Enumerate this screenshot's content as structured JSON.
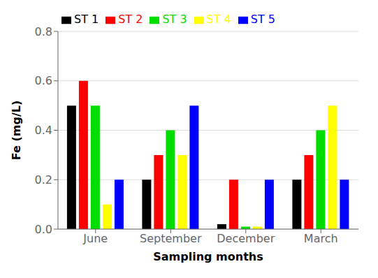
{
  "chart_data": {
    "type": "bar",
    "xlabel": "Sampling months",
    "ylabel": "Fe (mg/L)",
    "categories": [
      "June",
      "September",
      "December",
      "March"
    ],
    "series": [
      {
        "name": "ST 1",
        "color": "#000000",
        "values": [
          0.5,
          0.2,
          0.02,
          0.2
        ]
      },
      {
        "name": "ST 2",
        "color": "#ff0000",
        "values": [
          0.6,
          0.3,
          0.2,
          0.3
        ]
      },
      {
        "name": "ST 3",
        "color": "#00dd00",
        "values": [
          0.5,
          0.4,
          0.01,
          0.4
        ]
      },
      {
        "name": "ST 4",
        "color": "#ffff00",
        "values": [
          0.1,
          0.3,
          0.01,
          0.5
        ]
      },
      {
        "name": "ST 5",
        "color": "#0000ff",
        "values": [
          0.2,
          0.5,
          0.2,
          0.2
        ]
      }
    ],
    "ylim": [
      0.0,
      0.8
    ],
    "yticks": [
      {
        "value": 0.0,
        "label": "0.0"
      },
      0.2,
      0.4,
      0.6,
      0.8
    ],
    "grid": true,
    "legend": "upper left"
  }
}
